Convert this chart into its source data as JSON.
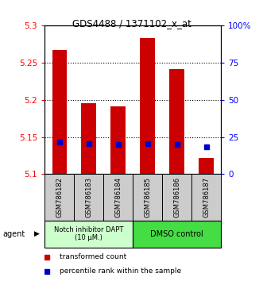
{
  "title": "GDS4488 / 1371102_x_at",
  "samples": [
    "GSM786182",
    "GSM786183",
    "GSM786184",
    "GSM786185",
    "GSM786186",
    "GSM786187"
  ],
  "bar_bottoms": [
    5.1,
    5.1,
    5.1,
    5.1,
    5.1,
    5.1
  ],
  "bar_tops": [
    5.267,
    5.195,
    5.191,
    5.283,
    5.241,
    5.122
  ],
  "percentile_values": [
    5.143,
    5.141,
    5.14,
    5.141,
    5.14,
    5.137
  ],
  "ylim": [
    5.1,
    5.3
  ],
  "yticks": [
    5.1,
    5.15,
    5.2,
    5.25,
    5.3
  ],
  "ytick_labels": [
    "5.1",
    "5.15",
    "5.2",
    "5.25",
    "5.3"
  ],
  "right_yticks": [
    0,
    25,
    50,
    75,
    100
  ],
  "right_ytick_labels": [
    "0",
    "25",
    "50",
    "75",
    "100%"
  ],
  "bar_color": "#cc0000",
  "percentile_color": "#0000cc",
  "group1_label": "Notch inhibitor DAPT\n(10 μM.)",
  "group2_label": "DMSO control",
  "group1_bg": "#ccffcc",
  "group2_bg": "#44dd44",
  "sample_box_bg": "#cccccc",
  "legend_red_label": "transformed count",
  "legend_blue_label": "percentile rank within the sample",
  "agent_label": "agent",
  "bar_width": 0.5
}
